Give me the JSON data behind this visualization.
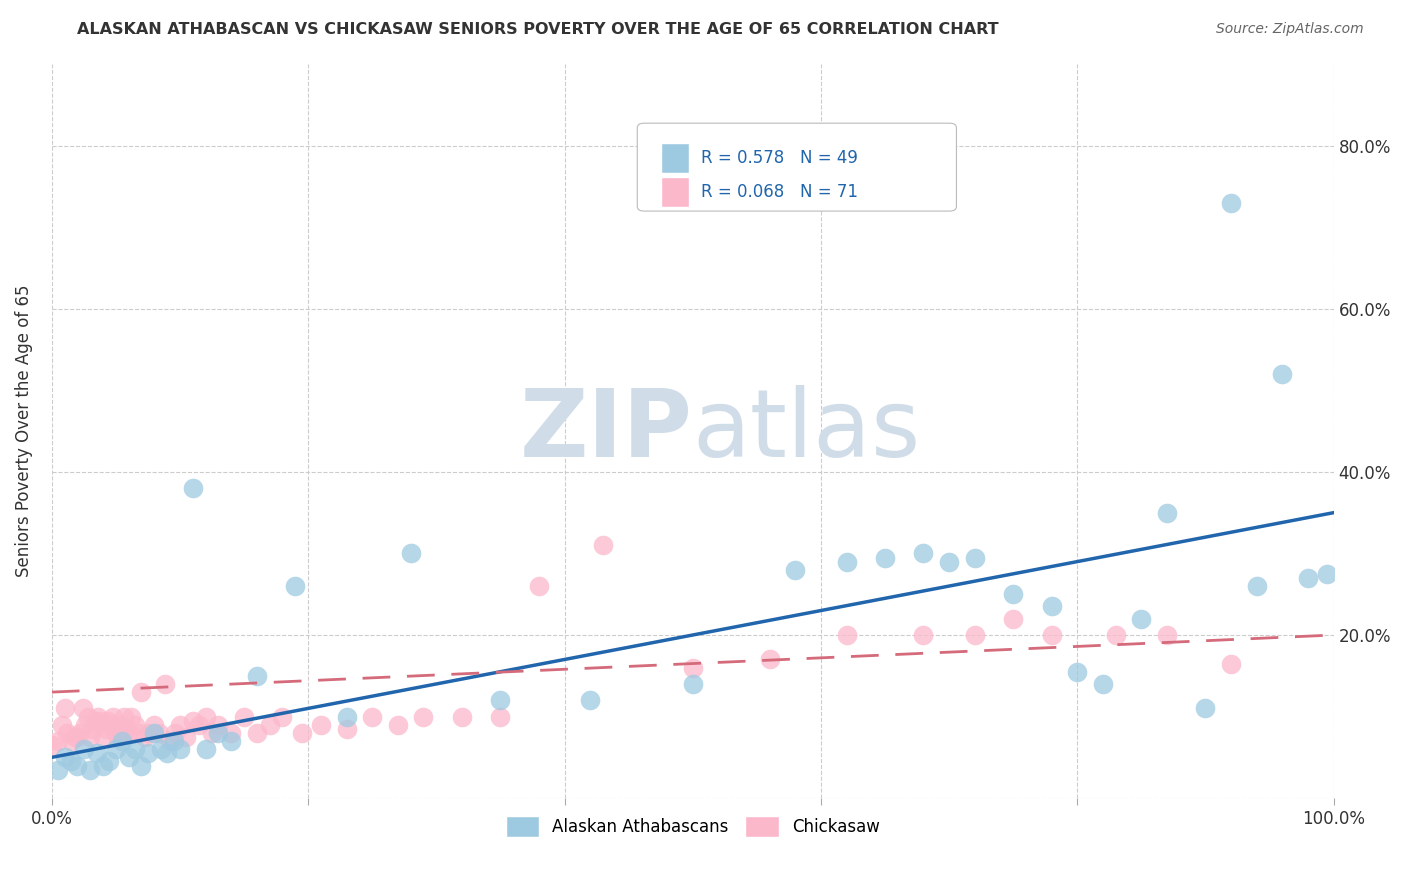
{
  "title": "ALASKAN ATHABASCAN VS CHICKASAW SENIORS POVERTY OVER THE AGE OF 65 CORRELATION CHART",
  "source": "Source: ZipAtlas.com",
  "ylabel": "Seniors Poverty Over the Age of 65",
  "legend_label1": "Alaskan Athabascans",
  "legend_label2": "Chickasaw",
  "R1": "0.578",
  "N1": "49",
  "R2": "0.068",
  "N2": "71",
  "color_blue": "#9ecae1",
  "color_pink": "#fcb8cb",
  "color_blue_line": "#2166ac",
  "color_pink_line": "#d46a7a",
  "watermark_zip": "ZIP",
  "watermark_atlas": "atlas",
  "background_color": "#ffffff",
  "grid_color": "#cccccc",
  "blue_scatter_x": [
    0.005,
    0.01,
    0.015,
    0.02,
    0.025,
    0.03,
    0.035,
    0.04,
    0.045,
    0.05,
    0.055,
    0.06,
    0.065,
    0.07,
    0.075,
    0.08,
    0.085,
    0.09,
    0.095,
    0.1,
    0.11,
    0.12,
    0.13,
    0.14,
    0.16,
    0.19,
    0.23,
    0.28,
    0.35,
    0.42,
    0.5,
    0.58,
    0.62,
    0.65,
    0.68,
    0.7,
    0.72,
    0.75,
    0.78,
    0.8,
    0.82,
    0.85,
    0.87,
    0.9,
    0.92,
    0.94,
    0.96,
    0.98,
    0.995
  ],
  "blue_scatter_y": [
    0.035,
    0.05,
    0.045,
    0.04,
    0.06,
    0.035,
    0.055,
    0.04,
    0.045,
    0.06,
    0.07,
    0.05,
    0.06,
    0.04,
    0.055,
    0.08,
    0.06,
    0.055,
    0.07,
    0.06,
    0.38,
    0.06,
    0.08,
    0.07,
    0.15,
    0.26,
    0.1,
    0.3,
    0.12,
    0.12,
    0.14,
    0.28,
    0.29,
    0.295,
    0.3,
    0.29,
    0.295,
    0.25,
    0.235,
    0.155,
    0.14,
    0.22,
    0.35,
    0.11,
    0.73,
    0.26,
    0.52,
    0.27,
    0.275
  ],
  "pink_scatter_x": [
    0.0,
    0.005,
    0.008,
    0.01,
    0.012,
    0.015,
    0.018,
    0.02,
    0.022,
    0.024,
    0.026,
    0.028,
    0.03,
    0.032,
    0.034,
    0.036,
    0.038,
    0.04,
    0.042,
    0.044,
    0.046,
    0.048,
    0.05,
    0.052,
    0.054,
    0.056,
    0.058,
    0.06,
    0.062,
    0.065,
    0.068,
    0.07,
    0.073,
    0.076,
    0.08,
    0.084,
    0.088,
    0.092,
    0.096,
    0.1,
    0.105,
    0.11,
    0.115,
    0.12,
    0.125,
    0.13,
    0.14,
    0.15,
    0.16,
    0.17,
    0.18,
    0.195,
    0.21,
    0.23,
    0.25,
    0.27,
    0.29,
    0.32,
    0.35,
    0.38,
    0.43,
    0.5,
    0.56,
    0.62,
    0.68,
    0.72,
    0.75,
    0.78,
    0.83,
    0.87,
    0.92
  ],
  "pink_scatter_y": [
    0.065,
    0.07,
    0.09,
    0.11,
    0.08,
    0.07,
    0.075,
    0.075,
    0.08,
    0.11,
    0.09,
    0.1,
    0.075,
    0.085,
    0.095,
    0.1,
    0.095,
    0.075,
    0.085,
    0.095,
    0.09,
    0.1,
    0.08,
    0.075,
    0.09,
    0.1,
    0.085,
    0.08,
    0.1,
    0.09,
    0.08,
    0.13,
    0.075,
    0.08,
    0.09,
    0.08,
    0.14,
    0.07,
    0.08,
    0.09,
    0.075,
    0.095,
    0.09,
    0.1,
    0.08,
    0.09,
    0.08,
    0.1,
    0.08,
    0.09,
    0.1,
    0.08,
    0.09,
    0.085,
    0.1,
    0.09,
    0.1,
    0.1,
    0.1,
    0.26,
    0.31,
    0.16,
    0.17,
    0.2,
    0.2,
    0.2,
    0.22,
    0.2,
    0.2,
    0.2,
    0.165
  ],
  "blue_line_x0": 0.0,
  "blue_line_y0": 0.05,
  "blue_line_x1": 1.0,
  "blue_line_y1": 0.35,
  "pink_line_x0": 0.0,
  "pink_line_y0": 0.13,
  "pink_line_x1": 1.0,
  "pink_line_y1": 0.2,
  "xlim": [
    0.0,
    1.0
  ],
  "ylim": [
    0.0,
    0.9
  ],
  "xtick_positions": [
    0.0,
    0.2,
    0.4,
    0.6,
    0.8,
    1.0
  ],
  "ytick_positions": [
    0.0,
    0.2,
    0.4,
    0.6,
    0.8
  ]
}
